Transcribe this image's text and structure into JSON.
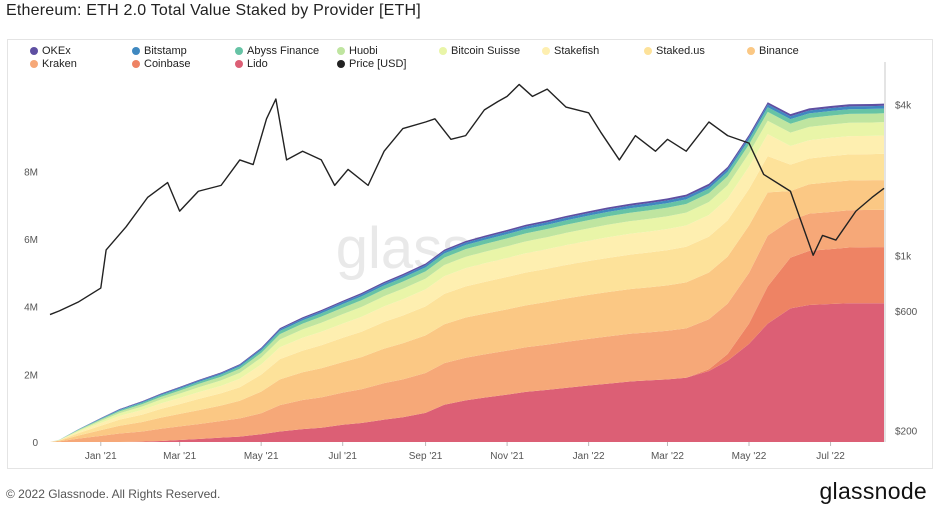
{
  "title": "Ethereum: ETH 2.0 Total Value Staked by Provider [ETH]",
  "footer": {
    "copyright": "© 2022 Glassnode. All Rights Reserved.",
    "brand": "glassnode"
  },
  "watermark": "glassnode",
  "chart_data": {
    "type": "area",
    "stacked": true,
    "x": [
      "2020-11-24",
      "2020-12-01",
      "2020-12-15",
      "2021-01-01",
      "2021-01-15",
      "2021-02-01",
      "2021-02-15",
      "2021-03-01",
      "2021-03-15",
      "2021-04-01",
      "2021-04-15",
      "2021-05-01",
      "2021-05-15",
      "2021-06-01",
      "2021-06-15",
      "2021-07-01",
      "2021-07-15",
      "2021-08-01",
      "2021-08-15",
      "2021-09-01",
      "2021-09-15",
      "2021-10-01",
      "2021-10-15",
      "2021-11-01",
      "2021-11-15",
      "2021-12-01",
      "2021-12-15",
      "2022-01-01",
      "2022-01-15",
      "2022-02-01",
      "2022-02-15",
      "2022-03-01",
      "2022-03-15",
      "2022-04-01",
      "2022-04-15",
      "2022-05-01",
      "2022-05-15",
      "2022-06-01",
      "2022-06-15",
      "2022-07-01",
      "2022-07-15",
      "2022-08-01",
      "2022-08-10"
    ],
    "x_ticks": [
      "Jan '21",
      "Mar '21",
      "May '21",
      "Jul '21",
      "Sep '21",
      "Nov '21",
      "Jan '22",
      "Mar '22",
      "May '22",
      "Jul '22"
    ],
    "y_left": {
      "ticks": [
        "0",
        "2M",
        "4M",
        "6M",
        "8M"
      ],
      "ylim": [
        0,
        10700000
      ]
    },
    "y_right": {
      "ticks": [
        "$200",
        "$600",
        "$1k",
        "$4k"
      ],
      "scale": "log",
      "ylim": [
        180,
        5000
      ]
    },
    "series": [
      {
        "name": "Lido",
        "color": "#dc5f75",
        "values": [
          0,
          0,
          0,
          0,
          0,
          10000,
          30000,
          60000,
          90000,
          130000,
          160000,
          230000,
          310000,
          380000,
          420000,
          510000,
          560000,
          660000,
          730000,
          860000,
          1100000,
          1230000,
          1310000,
          1400000,
          1480000,
          1540000,
          1600000,
          1670000,
          1720000,
          1790000,
          1820000,
          1850000,
          1900000,
          2100000,
          2400000,
          2900000,
          3500000,
          3950000,
          4050000,
          4080000,
          4100000,
          4100000,
          4100000
        ]
      },
      {
        "name": "Coinbase",
        "color": "#ee8364",
        "values": [
          0,
          0,
          0,
          0,
          0,
          0,
          0,
          0,
          0,
          0,
          0,
          0,
          0,
          0,
          0,
          0,
          0,
          0,
          0,
          0,
          0,
          0,
          0,
          0,
          0,
          0,
          0,
          0,
          0,
          0,
          0,
          0,
          0,
          50000,
          200000,
          600000,
          1100000,
          1500000,
          1600000,
          1620000,
          1650000,
          1660000,
          1660000
        ]
      },
      {
        "name": "Kraken",
        "color": "#f6a878",
        "values": [
          0,
          20000,
          100000,
          180000,
          250000,
          300000,
          360000,
          400000,
          440000,
          490000,
          540000,
          620000,
          780000,
          860000,
          900000,
          950000,
          1000000,
          1080000,
          1120000,
          1180000,
          1230000,
          1260000,
          1280000,
          1300000,
          1320000,
          1340000,
          1360000,
          1380000,
          1400000,
          1410000,
          1420000,
          1440000,
          1460000,
          1480000,
          1490000,
          1500000,
          1500000,
          1100000,
          1100000,
          1100000,
          1100000,
          1100000,
          1100000
        ]
      },
      {
        "name": "Binance",
        "color": "#fbc884",
        "values": [
          0,
          20000,
          90000,
          170000,
          230000,
          280000,
          330000,
          370000,
          410000,
          460000,
          520000,
          640000,
          760000,
          820000,
          860000,
          900000,
          950000,
          1020000,
          1070000,
          1110000,
          1150000,
          1190000,
          1200000,
          1220000,
          1240000,
          1260000,
          1280000,
          1300000,
          1310000,
          1320000,
          1330000,
          1340000,
          1360000,
          1380000,
          1390000,
          1400000,
          1280000,
          870000,
          870000,
          880000,
          880000,
          880000,
          880000
        ]
      },
      {
        "name": "Staked.us",
        "color": "#fde29a",
        "values": [
          0,
          10000,
          70000,
          130000,
          180000,
          220000,
          260000,
          290000,
          330000,
          360000,
          400000,
          500000,
          600000,
          640000,
          680000,
          720000,
          750000,
          790000,
          820000,
          860000,
          900000,
          920000,
          940000,
          960000,
          970000,
          980000,
          990000,
          1000000,
          1010000,
          1020000,
          1030000,
          1040000,
          1050000,
          1060000,
          1070000,
          1080000,
          1070000,
          780000,
          760000,
          770000,
          770000,
          770000,
          780000
        ]
      },
      {
        "name": "Stakefish",
        "color": "#feefb0",
        "values": [
          0,
          5000,
          40000,
          80000,
          110000,
          140000,
          160000,
          180000,
          200000,
          220000,
          250000,
          300000,
          350000,
          380000,
          400000,
          420000,
          440000,
          460000,
          480000,
          500000,
          520000,
          540000,
          550000,
          560000,
          570000,
          580000,
          590000,
          600000,
          610000,
          615000,
          620000,
          625000,
          630000,
          640000,
          650000,
          660000,
          650000,
          550000,
          540000,
          540000,
          540000,
          540000,
          540000
        ]
      },
      {
        "name": "Bitcoin Suisse",
        "color": "#e9f5a8",
        "values": [
          0,
          5000,
          30000,
          60000,
          80000,
          100000,
          115000,
          130000,
          145000,
          160000,
          175000,
          200000,
          230000,
          250000,
          265000,
          280000,
          290000,
          300000,
          310000,
          320000,
          330000,
          335000,
          340000,
          345000,
          350000,
          355000,
          360000,
          365000,
          370000,
          372000,
          375000,
          378000,
          380000,
          385000,
          390000,
          395000,
          395000,
          395000,
          395000,
          395000,
          395000,
          395000,
          395000
        ]
      },
      {
        "name": "Huobi",
        "color": "#bfe5a0",
        "values": [
          0,
          3000,
          20000,
          40000,
          55000,
          70000,
          80000,
          90000,
          100000,
          110000,
          120000,
          140000,
          160000,
          170000,
          180000,
          190000,
          200000,
          205000,
          210000,
          215000,
          220000,
          225000,
          230000,
          235000,
          238000,
          240000,
          243000,
          245000,
          248000,
          250000,
          252000,
          254000,
          256000,
          258000,
          260000,
          262000,
          262000,
          262000,
          262000,
          262000,
          262000,
          262000,
          262000
        ]
      },
      {
        "name": "Abyss Finance",
        "color": "#66c3a5",
        "values": [
          0,
          2000,
          12000,
          25000,
          35000,
          45000,
          50000,
          55000,
          60000,
          65000,
          70000,
          80000,
          90000,
          95000,
          100000,
          105000,
          110000,
          112000,
          115000,
          118000,
          120000,
          122000,
          124000,
          126000,
          127000,
          128000,
          129000,
          130000,
          131000,
          132000,
          133000,
          134000,
          135000,
          136000,
          137000,
          138000,
          138000,
          138000,
          138000,
          138000,
          138000,
          138000,
          138000
        ]
      },
      {
        "name": "Bitstamp",
        "color": "#3f88c0",
        "values": [
          0,
          1000,
          8000,
          15000,
          20000,
          25000,
          28000,
          31000,
          34000,
          37000,
          40000,
          45000,
          50000,
          53000,
          56000,
          58000,
          60000,
          62000,
          64000,
          66000,
          68000,
          70000,
          71000,
          72000,
          73000,
          74000,
          75000,
          76000,
          77000,
          78000,
          79000,
          80000,
          81000,
          82000,
          83000,
          84000,
          84000,
          84000,
          84000,
          84000,
          84000,
          84000,
          84000
        ]
      },
      {
        "name": "OKEx",
        "color": "#5e4fa2",
        "values": [
          0,
          1000,
          5000,
          10000,
          14000,
          18000,
          20000,
          22000,
          24000,
          26000,
          28000,
          32000,
          36000,
          38000,
          40000,
          42000,
          44000,
          45000,
          46000,
          47000,
          48000,
          49000,
          50000,
          51000,
          52000,
          53000,
          54000,
          55000,
          56000,
          57000,
          58000,
          59000,
          60000,
          61000,
          62000,
          63000,
          63000,
          63000,
          63000,
          63000,
          63000,
          63000,
          63000
        ]
      }
    ],
    "price": {
      "name": "Price [USD]",
      "color": "#222222",
      "x": [
        "2020-11-24",
        "2020-12-01",
        "2020-12-15",
        "2021-01-01",
        "2021-01-05",
        "2021-01-20",
        "2021-02-05",
        "2021-02-20",
        "2021-03-01",
        "2021-03-15",
        "2021-04-01",
        "2021-04-15",
        "2021-04-25",
        "2021-05-05",
        "2021-05-12",
        "2021-05-20",
        "2021-06-01",
        "2021-06-15",
        "2021-06-25",
        "2021-07-05",
        "2021-07-20",
        "2021-08-01",
        "2021-08-15",
        "2021-09-01",
        "2021-09-08",
        "2021-09-20",
        "2021-10-01",
        "2021-10-15",
        "2021-10-25",
        "2021-11-01",
        "2021-11-10",
        "2021-11-20",
        "2021-12-01",
        "2021-12-15",
        "2022-01-01",
        "2022-01-10",
        "2022-01-24",
        "2022-02-05",
        "2022-02-20",
        "2022-03-01",
        "2022-03-15",
        "2022-04-01",
        "2022-04-15",
        "2022-05-01",
        "2022-05-12",
        "2022-05-25",
        "2022-06-01",
        "2022-06-18",
        "2022-06-25",
        "2022-07-05",
        "2022-07-20",
        "2022-08-01",
        "2022-08-10"
      ],
      "values": [
        580,
        600,
        650,
        740,
        1050,
        1300,
        1700,
        1950,
        1500,
        1800,
        1900,
        2400,
        2300,
        3500,
        4200,
        2400,
        2600,
        2400,
        1900,
        2200,
        1900,
        2600,
        3200,
        3400,
        3500,
        2900,
        3000,
        3800,
        4100,
        4300,
        4800,
        4300,
        4600,
        3900,
        3700,
        3100,
        2400,
        3000,
        2600,
        2900,
        2600,
        3400,
        3000,
        2800,
        2100,
        1900,
        1800,
        1000,
        1200,
        1150,
        1500,
        1700,
        1850
      ]
    }
  }
}
